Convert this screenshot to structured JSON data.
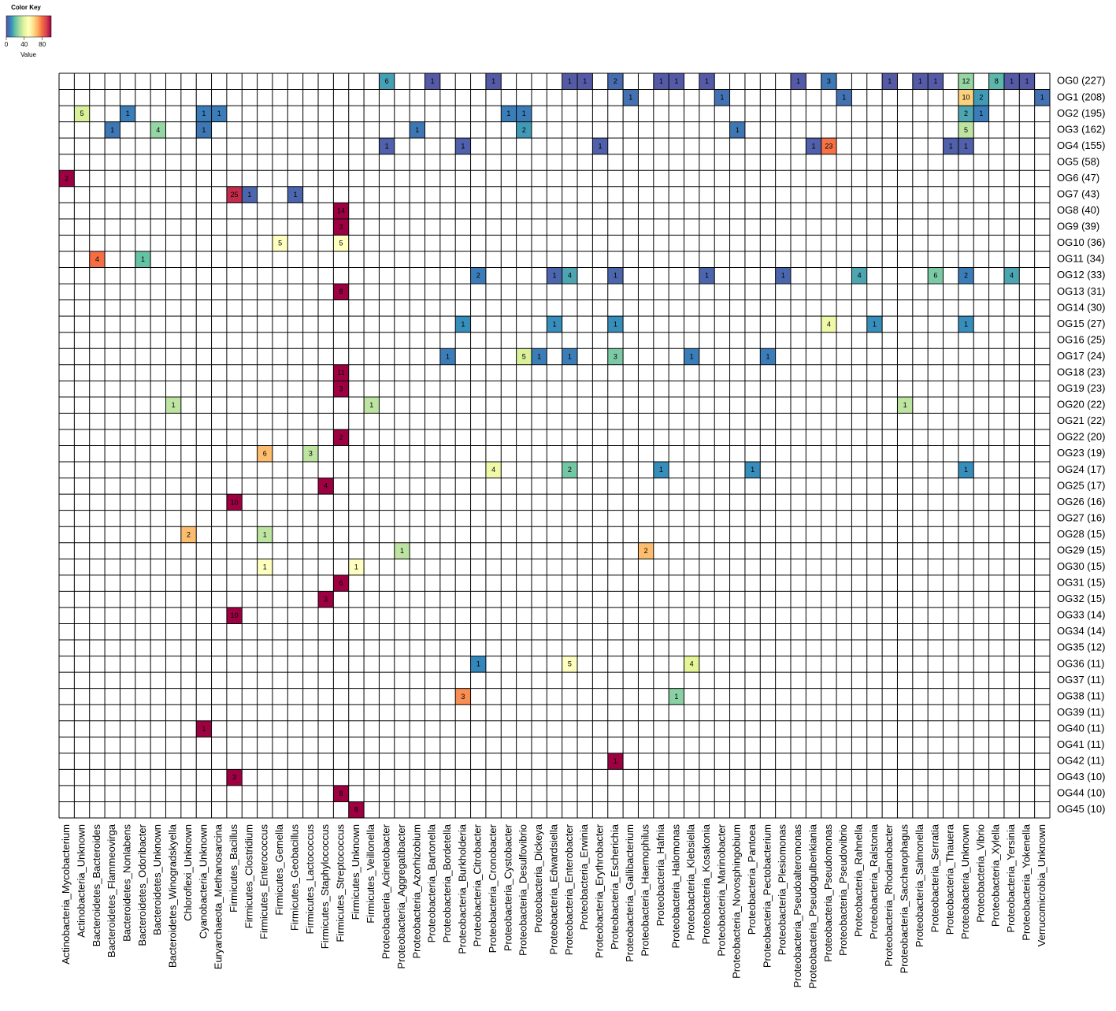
{
  "chart_data": {
    "type": "heatmap",
    "legend_title": "Color Key",
    "legend_label": "Value",
    "clim": [
      0,
      100
    ],
    "cticks": [
      0,
      40,
      80
    ],
    "colors": [
      "#5E4FA2",
      "#3288BD",
      "#66C2A5",
      "#ABDDA4",
      "#E6F598",
      "#FFFFBF",
      "#FEE08B",
      "#FDAE61",
      "#F46D43",
      "#D53E4F",
      "#9E0142"
    ],
    "columns": [
      "Actinobacteria_Mycobacterium",
      "Actinobacteria_Unknown",
      "Bacteroidetes_Bacteroides",
      "Bacteroidetes_Flammeovirga",
      "Bacteroidetes_Nonlabens",
      "Bacteroidetes_Odoribacter",
      "Bacteroidetes_Unknown",
      "Bacteroidetes_Winogradskyella",
      "Chloroflexi_Unknown",
      "Cyanobacteria_Unknown",
      "Euryarchaeota_Methanosarcina",
      "Firmicutes_Bacillus",
      "Firmicutes_Clostridium",
      "Firmicutes_Enterococcus",
      "Firmicutes_Gemella",
      "Firmicutes_Geobacillus",
      "Firmicutes_Lactococcus",
      "Firmicutes_Staphylococcus",
      "Firmicutes_Streptococcus",
      "Firmicutes_Unknown",
      "Firmicutes_Veillonella",
      "Proteobacteria_Acinetobacter",
      "Proteobacteria_Aggregatibacter",
      "Proteobacteria_Azorhizobium",
      "Proteobacteria_Bartonella",
      "Proteobacteria_Bordetella",
      "Proteobacteria_Burkholderia",
      "Proteobacteria_Citrobacter",
      "Proteobacteria_Cronobacter",
      "Proteobacteria_Cystobacter",
      "Proteobacteria_Desulfovibrio",
      "Proteobacteria_Dickeya",
      "Proteobacteria_Edwardsiella",
      "Proteobacteria_Enterobacter",
      "Proteobacteria_Erwinia",
      "Proteobacteria_Erythrobacter",
      "Proteobacteria_Escherichia",
      "Proteobacteria_Gallibacterium",
      "Proteobacteria_Haemophilus",
      "Proteobacteria_Hafnia",
      "Proteobacteria_Halomonas",
      "Proteobacteria_Klebsiella",
      "Proteobacteria_Kosakonia",
      "Proteobacteria_Marinobacter",
      "Proteobacteria_Novosphingobium",
      "Proteobacteria_Pantoea",
      "Proteobacteria_Pectobacterium",
      "Proteobacteria_Plesiomonas",
      "Proteobacteria_Pseudoalteromonas",
      "Proteobacteria_Pseudogulbenkiania",
      "Proteobacteria_Pseudomonas",
      "Proteobacteria_Pseudovibrio",
      "Proteobacteria_Rahnella",
      "Proteobacteria_Ralstonia",
      "Proteobacteria_Rhodanobacter",
      "Proteobacteria_Saccharophagus",
      "Proteobacteria_Salmonella",
      "Proteobacteria_Serratia",
      "Proteobacteria_Thauera",
      "Proteobacteria_Unknown",
      "Proteobacteria_Vibrio",
      "Proteobacteria_Xylella",
      "Proteobacteria_Yersinia",
      "Proteobacteria_Yokenella",
      "Verrucomicrobia_Unknown"
    ],
    "rows": [
      "OG0 (227)",
      "OG1 (208)",
      "OG2 (195)",
      "OG3 (162)",
      "OG4 (155)",
      "OG5 (58)",
      "OG6 (47)",
      "OG7 (43)",
      "OG8 (40)",
      "OG9 (39)",
      "OG10 (36)",
      "OG11 (34)",
      "OG12 (33)",
      "OG13 (31)",
      "OG14 (30)",
      "OG15 (27)",
      "OG16 (25)",
      "OG17 (24)",
      "OG18 (23)",
      "OG19 (23)",
      "OG20 (22)",
      "OG21 (22)",
      "OG22 (20)",
      "OG23 (19)",
      "OG24 (17)",
      "OG25 (17)",
      "OG26 (16)",
      "OG27 (16)",
      "OG28 (15)",
      "OG29 (15)",
      "OG30 (15)",
      "OG31 (15)",
      "OG32 (15)",
      "OG33 (14)",
      "OG34 (14)",
      "OG35 (12)",
      "OG36 (11)",
      "OG37 (11)",
      "OG38 (11)",
      "OG39 (11)",
      "OG40 (11)",
      "OG41 (11)",
      "OG42 (11)",
      "OG43 (10)",
      "OG44 (10)",
      "OG45 (10)"
    ],
    "cells": [
      {
        "row": 0,
        "column": 21,
        "count": 6,
        "value": 14
      },
      {
        "row": 0,
        "column": 24,
        "count": 1,
        "value": 2
      },
      {
        "row": 0,
        "column": 28,
        "count": 1,
        "value": 2
      },
      {
        "row": 0,
        "column": 33,
        "count": 1,
        "value": 2
      },
      {
        "row": 0,
        "column": 34,
        "count": 1,
        "value": 2
      },
      {
        "row": 0,
        "column": 36,
        "count": 2,
        "value": 5
      },
      {
        "row": 0,
        "column": 39,
        "count": 1,
        "value": 2
      },
      {
        "row": 0,
        "column": 40,
        "count": 1,
        "value": 2
      },
      {
        "row": 0,
        "column": 42,
        "count": 1,
        "value": 2
      },
      {
        "row": 0,
        "column": 48,
        "count": 1,
        "value": 2
      },
      {
        "row": 0,
        "column": 50,
        "count": 3,
        "value": 7
      },
      {
        "row": 0,
        "column": 54,
        "count": 1,
        "value": 2
      },
      {
        "row": 0,
        "column": 56,
        "count": 1,
        "value": 2
      },
      {
        "row": 0,
        "column": 57,
        "count": 1,
        "value": 2
      },
      {
        "row": 0,
        "column": 59,
        "count": 12,
        "value": 27
      },
      {
        "row": 0,
        "column": 61,
        "count": 8,
        "value": 18
      },
      {
        "row": 0,
        "column": 62,
        "count": 1,
        "value": 2
      },
      {
        "row": 0,
        "column": 63,
        "count": 1,
        "value": 2
      },
      {
        "row": 1,
        "column": 37,
        "count": 1,
        "value": 6
      },
      {
        "row": 1,
        "column": 43,
        "count": 1,
        "value": 6
      },
      {
        "row": 1,
        "column": 51,
        "count": 1,
        "value": 6
      },
      {
        "row": 1,
        "column": 59,
        "count": 10,
        "value": 63
      },
      {
        "row": 1,
        "column": 60,
        "count": 2,
        "value": 13
      },
      {
        "row": 1,
        "column": 64,
        "count": 1,
        "value": 6
      },
      {
        "row": 2,
        "column": 1,
        "count": 5,
        "value": 38
      },
      {
        "row": 2,
        "column": 4,
        "count": 1,
        "value": 8
      },
      {
        "row": 2,
        "column": 9,
        "count": 1,
        "value": 8
      },
      {
        "row": 2,
        "column": 10,
        "count": 1,
        "value": 8
      },
      {
        "row": 2,
        "column": 29,
        "count": 1,
        "value": 8
      },
      {
        "row": 2,
        "column": 30,
        "count": 1,
        "value": 8
      },
      {
        "row": 2,
        "column": 59,
        "count": 2,
        "value": 15
      },
      {
        "row": 2,
        "column": 60,
        "count": 1,
        "value": 8
      },
      {
        "row": 3,
        "column": 3,
        "count": 1,
        "value": 7
      },
      {
        "row": 3,
        "column": 6,
        "count": 4,
        "value": 27
      },
      {
        "row": 3,
        "column": 9,
        "count": 1,
        "value": 7
      },
      {
        "row": 3,
        "column": 23,
        "count": 1,
        "value": 7
      },
      {
        "row": 3,
        "column": 30,
        "count": 2,
        "value": 13
      },
      {
        "row": 3,
        "column": 44,
        "count": 1,
        "value": 7
      },
      {
        "row": 3,
        "column": 59,
        "count": 5,
        "value": 33
      },
      {
        "row": 4,
        "column": 21,
        "count": 1,
        "value": 3
      },
      {
        "row": 4,
        "column": 26,
        "count": 1,
        "value": 3
      },
      {
        "row": 4,
        "column": 35,
        "count": 1,
        "value": 3
      },
      {
        "row": 4,
        "column": 49,
        "count": 1,
        "value": 3
      },
      {
        "row": 4,
        "column": 50,
        "count": 23,
        "value": 79
      },
      {
        "row": 4,
        "column": 58,
        "count": 1,
        "value": 3
      },
      {
        "row": 4,
        "column": 59,
        "count": 1,
        "value": 3
      },
      {
        "row": 6,
        "column": 0,
        "count": 2,
        "value": 100
      },
      {
        "row": 7,
        "column": 11,
        "count": 25,
        "value": 93
      },
      {
        "row": 7,
        "column": 12,
        "count": 1,
        "value": 4
      },
      {
        "row": 7,
        "column": 15,
        "count": 1,
        "value": 4
      },
      {
        "row": 8,
        "column": 18,
        "count": 14,
        "value": 100
      },
      {
        "row": 9,
        "column": 18,
        "count": 3,
        "value": 100
      },
      {
        "row": 10,
        "column": 14,
        "count": 5,
        "value": 50
      },
      {
        "row": 10,
        "column": 18,
        "count": 5,
        "value": 50
      },
      {
        "row": 11,
        "column": 2,
        "count": 4,
        "value": 80
      },
      {
        "row": 11,
        "column": 5,
        "count": 1,
        "value": 20
      },
      {
        "row": 12,
        "column": 27,
        "count": 2,
        "value": 8
      },
      {
        "row": 12,
        "column": 32,
        "count": 1,
        "value": 4
      },
      {
        "row": 12,
        "column": 33,
        "count": 4,
        "value": 15
      },
      {
        "row": 12,
        "column": 36,
        "count": 1,
        "value": 4
      },
      {
        "row": 12,
        "column": 42,
        "count": 1,
        "value": 4
      },
      {
        "row": 12,
        "column": 47,
        "count": 1,
        "value": 4
      },
      {
        "row": 12,
        "column": 52,
        "count": 4,
        "value": 15
      },
      {
        "row": 12,
        "column": 57,
        "count": 6,
        "value": 23
      },
      {
        "row": 12,
        "column": 59,
        "count": 2,
        "value": 8
      },
      {
        "row": 12,
        "column": 62,
        "count": 4,
        "value": 15
      },
      {
        "row": 13,
        "column": 18,
        "count": 8,
        "value": 100
      },
      {
        "row": 15,
        "column": 26,
        "count": 1,
        "value": 11
      },
      {
        "row": 15,
        "column": 32,
        "count": 1,
        "value": 11
      },
      {
        "row": 15,
        "column": 36,
        "count": 1,
        "value": 11
      },
      {
        "row": 15,
        "column": 50,
        "count": 4,
        "value": 44
      },
      {
        "row": 15,
        "column": 53,
        "count": 1,
        "value": 11
      },
      {
        "row": 15,
        "column": 59,
        "count": 1,
        "value": 11
      },
      {
        "row": 17,
        "column": 25,
        "count": 1,
        "value": 8
      },
      {
        "row": 17,
        "column": 30,
        "count": 5,
        "value": 38
      },
      {
        "row": 17,
        "column": 31,
        "count": 1,
        "value": 8
      },
      {
        "row": 17,
        "column": 33,
        "count": 1,
        "value": 8
      },
      {
        "row": 17,
        "column": 36,
        "count": 3,
        "value": 23
      },
      {
        "row": 17,
        "column": 41,
        "count": 1,
        "value": 8
      },
      {
        "row": 17,
        "column": 46,
        "count": 1,
        "value": 8
      },
      {
        "row": 18,
        "column": 18,
        "count": 11,
        "value": 100
      },
      {
        "row": 19,
        "column": 18,
        "count": 3,
        "value": 100
      },
      {
        "row": 20,
        "column": 7,
        "count": 1,
        "value": 33
      },
      {
        "row": 20,
        "column": 20,
        "count": 1,
        "value": 33
      },
      {
        "row": 20,
        "column": 55,
        "count": 1,
        "value": 33
      },
      {
        "row": 22,
        "column": 18,
        "count": 2,
        "value": 100
      },
      {
        "row": 23,
        "column": 13,
        "count": 6,
        "value": 67
      },
      {
        "row": 23,
        "column": 16,
        "count": 3,
        "value": 33
      },
      {
        "row": 24,
        "column": 28,
        "count": 4,
        "value": 44
      },
      {
        "row": 24,
        "column": 33,
        "count": 2,
        "value": 22
      },
      {
        "row": 24,
        "column": 39,
        "count": 1,
        "value": 11
      },
      {
        "row": 24,
        "column": 45,
        "count": 1,
        "value": 11
      },
      {
        "row": 24,
        "column": 59,
        "count": 1,
        "value": 11
      },
      {
        "row": 25,
        "column": 17,
        "count": 4,
        "value": 100
      },
      {
        "row": 26,
        "column": 11,
        "count": 10,
        "value": 100
      },
      {
        "row": 28,
        "column": 8,
        "count": 2,
        "value": 67
      },
      {
        "row": 28,
        "column": 13,
        "count": 1,
        "value": 33
      },
      {
        "row": 29,
        "column": 22,
        "count": 1,
        "value": 33
      },
      {
        "row": 29,
        "column": 38,
        "count": 2,
        "value": 67
      },
      {
        "row": 30,
        "column": 13,
        "count": 1,
        "value": 50
      },
      {
        "row": 30,
        "column": 19,
        "count": 1,
        "value": 50
      },
      {
        "row": 31,
        "column": 18,
        "count": 6,
        "value": 100
      },
      {
        "row": 32,
        "column": 17,
        "count": 3,
        "value": 100
      },
      {
        "row": 33,
        "column": 11,
        "count": 10,
        "value": 100
      },
      {
        "row": 36,
        "column": 27,
        "count": 1,
        "value": 10
      },
      {
        "row": 36,
        "column": 33,
        "count": 5,
        "value": 50
      },
      {
        "row": 36,
        "column": 41,
        "count": 4,
        "value": 40
      },
      {
        "row": 38,
        "column": 26,
        "count": 3,
        "value": 75
      },
      {
        "row": 38,
        "column": 40,
        "count": 1,
        "value": 25
      },
      {
        "row": 40,
        "column": 9,
        "count": 1,
        "value": 100
      },
      {
        "row": 42,
        "column": 36,
        "count": 1,
        "value": 100
      },
      {
        "row": 43,
        "column": 11,
        "count": 3,
        "value": 100
      },
      {
        "row": 44,
        "column": 18,
        "count": 8,
        "value": 100
      },
      {
        "row": 45,
        "column": 19,
        "count": 8,
        "value": 100
      }
    ]
  }
}
